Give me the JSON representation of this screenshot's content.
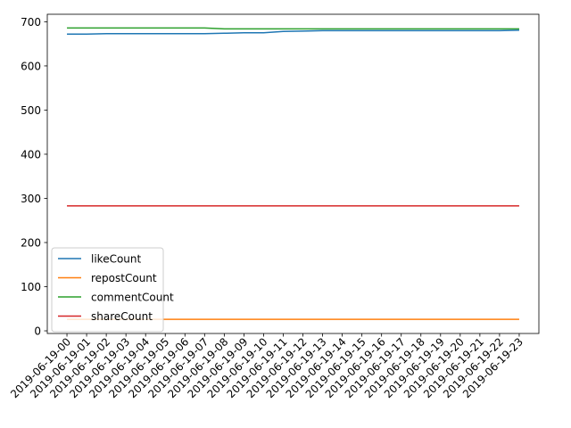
{
  "chart_data": {
    "type": "line",
    "title": "",
    "xlabel": "",
    "ylabel": "",
    "x": [
      "2019-06-19-00",
      "2019-06-19-01",
      "2019-06-19-02",
      "2019-06-19-03",
      "2019-06-19-04",
      "2019-06-19-05",
      "2019-06-19-06",
      "2019-06-19-07",
      "2019-06-19-08",
      "2019-06-19-09",
      "2019-06-19-10",
      "2019-06-19-11",
      "2019-06-19-12",
      "2019-06-19-13",
      "2019-06-19-14",
      "2019-06-19-15",
      "2019-06-19-16",
      "2019-06-19-17",
      "2019-06-19-18",
      "2019-06-19-19",
      "2019-06-19-20",
      "2019-06-19-21",
      "2019-06-19-22",
      "2019-06-19-23"
    ],
    "ylim": [
      -6,
      717
    ],
    "yticks": [
      0,
      100,
      200,
      300,
      400,
      500,
      600,
      700
    ],
    "grid": false,
    "legend_position": "lower-left",
    "series": [
      {
        "name": "likeCount",
        "color": "#1f77b4",
        "values": [
          672,
          672,
          673,
          673,
          673,
          673,
          673,
          673,
          674,
          675,
          675,
          678,
          679,
          680,
          680,
          680,
          680,
          680,
          680,
          680,
          680,
          680,
          680,
          681
        ]
      },
      {
        "name": "repostCount",
        "color": "#ff7f0e",
        "values": [
          26,
          26,
          26,
          26,
          26,
          26,
          26,
          26,
          26,
          26,
          26,
          26,
          26,
          26,
          26,
          26,
          26,
          26,
          26,
          26,
          26,
          26,
          26,
          26
        ]
      },
      {
        "name": "commentCount",
        "color": "#2ca02c",
        "values": [
          686,
          686,
          686,
          686,
          686,
          686,
          686,
          686,
          684,
          684,
          684,
          684,
          684,
          684,
          684,
          684,
          684,
          684,
          684,
          684,
          684,
          684,
          684,
          684
        ]
      },
      {
        "name": "shareCount",
        "color": "#d62728",
        "values": [
          283,
          283,
          283,
          283,
          283,
          283,
          283,
          283,
          283,
          283,
          283,
          283,
          283,
          283,
          283,
          283,
          283,
          283,
          283,
          283,
          283,
          283,
          283,
          283
        ]
      }
    ]
  }
}
